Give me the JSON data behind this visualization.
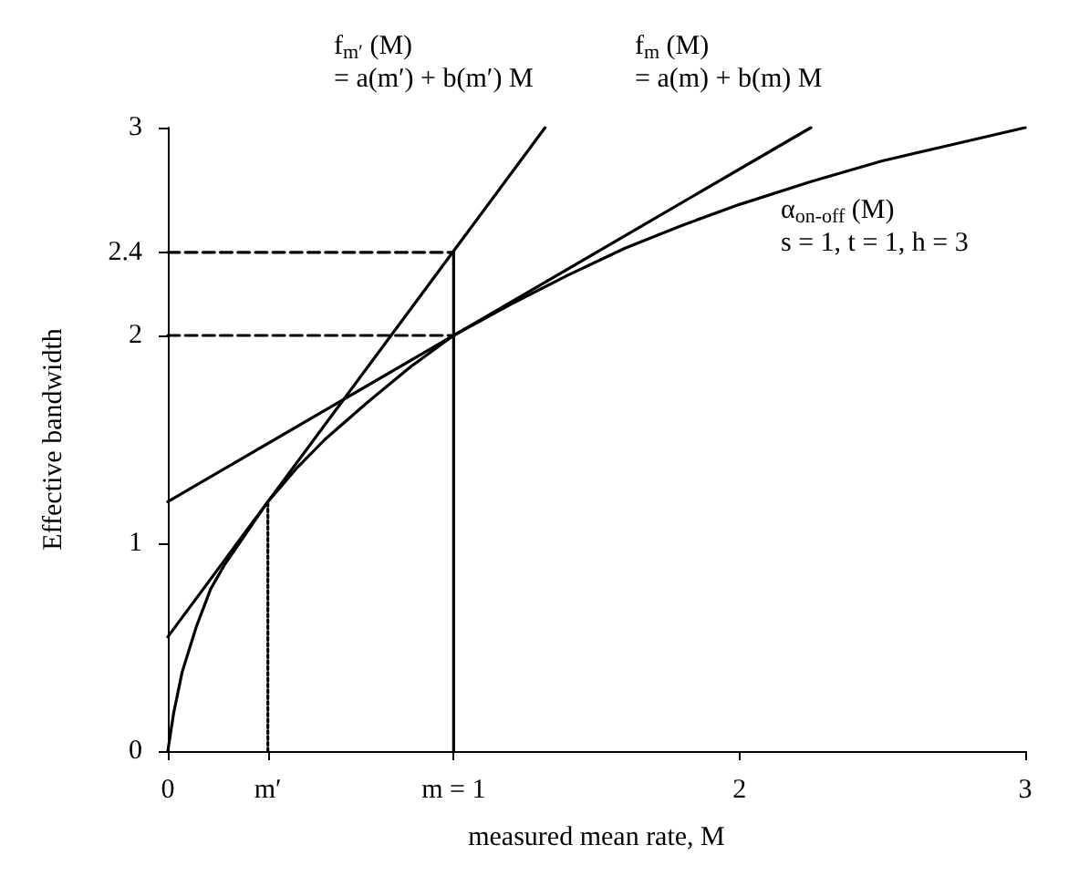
{
  "chart_data": {
    "type": "line",
    "xlabel": "measured mean rate, M",
    "ylabel": "Effective bandwidth",
    "xlim": [
      0,
      3
    ],
    "ylim": [
      0,
      3
    ],
    "xticks": [
      0,
      {
        "value": 0.35,
        "label": "m′"
      },
      {
        "value": 1,
        "label": "m = 1"
      },
      2,
      3
    ],
    "yticks": [
      0,
      1,
      2,
      2.4,
      3
    ],
    "grid": false,
    "marker": "none",
    "series": [
      {
        "color": "#000000",
        "x": [
          0,
          0.02,
          0.05,
          0.1,
          0.15,
          0.2,
          0.25,
          0.3,
          0.35,
          0.45,
          0.55,
          0.7,
          0.85,
          1,
          1.2,
          1.4,
          1.6,
          1.8,
          2,
          2.25,
          2.5,
          2.75,
          3
        ],
        "values": [
          0,
          0.18,
          0.38,
          0.6,
          0.78,
          0.9,
          1.0,
          1.1,
          1.2,
          1.36,
          1.5,
          1.68,
          1.85,
          2,
          2.15,
          2.29,
          2.42,
          2.53,
          2.63,
          2.74,
          2.84,
          2.92,
          3.0
        ]
      },
      {
        "color": "#000000",
        "x": [
          0,
          2.25
        ],
        "values": [
          1.2,
          3
        ]
      },
      {
        "color": "#000000",
        "x": [
          0,
          1.32
        ],
        "values": [
          0.55,
          3
        ]
      },
      {
        "color": "#000000",
        "x": [
          0,
          1
        ],
        "values": [
          2,
          2
        ],
        "line_style": "dashed"
      },
      {
        "color": "#000000",
        "x": [
          0,
          1
        ],
        "values": [
          2.4,
          2.4
        ],
        "line_style": "dashed"
      },
      {
        "color": "#000000",
        "x": [
          1,
          1
        ],
        "values": [
          0,
          2.4
        ]
      },
      {
        "color": "#000000",
        "x": [
          0.35,
          0.35
        ],
        "values": [
          0,
          1.2
        ],
        "line_style": "dotted"
      }
    ],
    "annotations": [
      "f$_{m′}$ (M)\n= a(m′) + b(m′) M",
      "f$_{m}$ (M)\n= a(m) + b(m) M",
      "α$_{on-off}$ (M)\ns = 1, t = 1, h = 3"
    ]
  }
}
